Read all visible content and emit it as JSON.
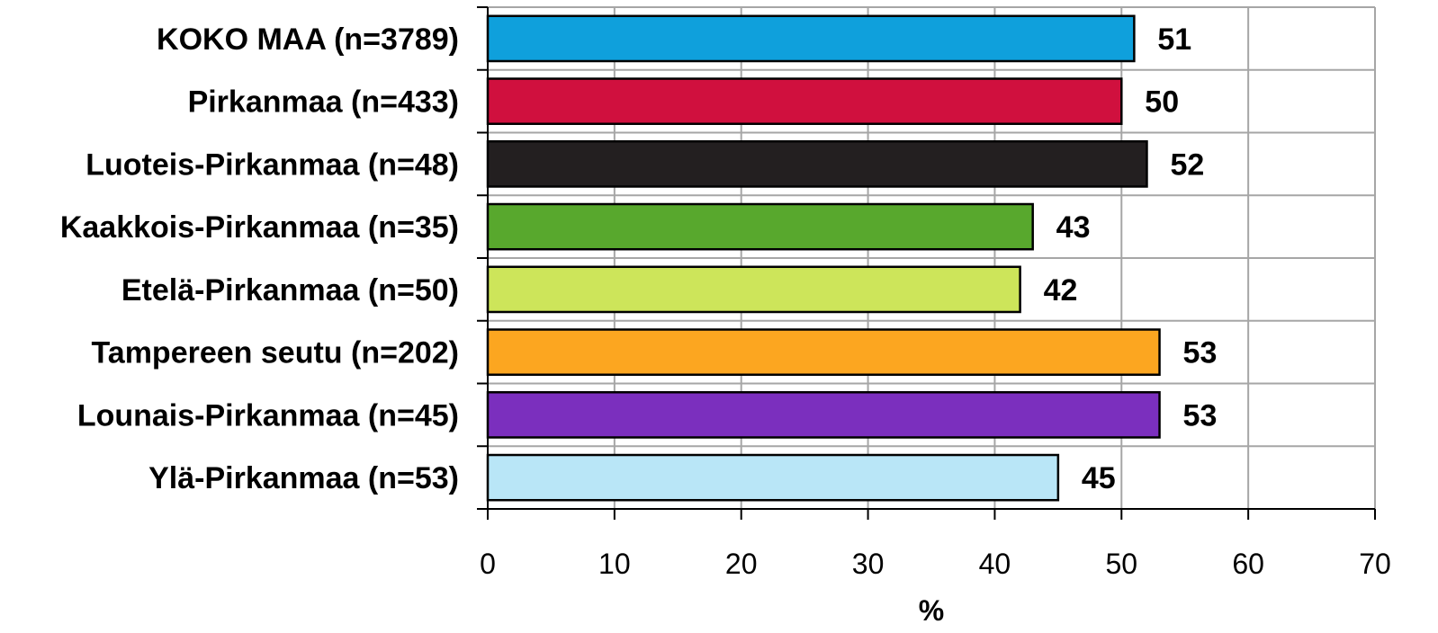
{
  "chart_data": {
    "type": "bar",
    "orientation": "horizontal",
    "categories": [
      "KOKO MAA (n=3789)",
      "Pirkanmaa (n=433)",
      "Luoteis-Pirkanmaa (n=48)",
      "Kaakkois-Pirkanmaa (n=35)",
      "Etelä-Pirkanmaa (n=50)",
      "Tampereen seutu (n=202)",
      "Lounais-Pirkanmaa (n=45)",
      "Ylä-Pirkanmaa (n=53)"
    ],
    "values": [
      51,
      50,
      52,
      43,
      42,
      53,
      53,
      45
    ],
    "data_labels": [
      "51",
      "50",
      "52",
      "43",
      "42",
      "53",
      "53",
      "45"
    ],
    "colors": [
      "#0fa0dc",
      "#d0103e",
      "#231f20",
      "#58a82d",
      "#cde55a",
      "#fca620",
      "#7b2fbe",
      "#b9e6f7"
    ],
    "title": "",
    "xlabel": "%",
    "ylabel": "",
    "xlim": [
      0,
      70
    ],
    "x_ticks": [
      0,
      10,
      20,
      30,
      40,
      50,
      60,
      70
    ],
    "x_tick_labels": [
      "0",
      "10",
      "20",
      "30",
      "40",
      "50",
      "60",
      "70"
    ],
    "grid": true,
    "legend": "none"
  }
}
